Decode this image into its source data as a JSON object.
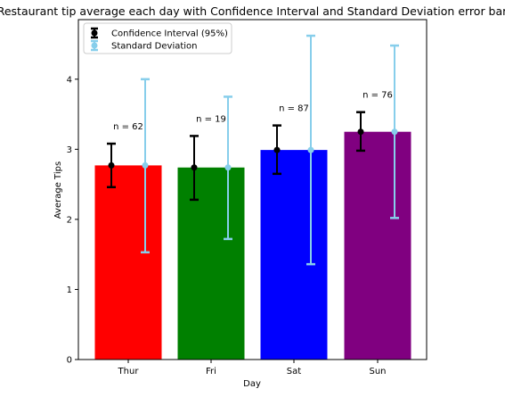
{
  "chart_data": {
    "type": "bar",
    "title": "Restaurant tip average each day with Confidence Interval and Standard Deviation error bar",
    "xlabel": "Day",
    "ylabel": "Average Tips",
    "categories": [
      "Thur",
      "Fri",
      "Sat",
      "Sun"
    ],
    "values": [
      2.77,
      2.74,
      2.99,
      3.25
    ],
    "bar_colors": [
      "#ff0000",
      "#008000",
      "#0000ff",
      "#800080"
    ],
    "counts": [
      "n = 62",
      "n = 19",
      "n = 87",
      "n = 76"
    ],
    "ci": [
      {
        "low": 2.46,
        "high": 3.08
      },
      {
        "low": 2.28,
        "high": 3.19
      },
      {
        "low": 2.65,
        "high": 3.34
      },
      {
        "low": 2.98,
        "high": 3.53
      }
    ],
    "std": [
      {
        "low": 1.53,
        "high": 4.0
      },
      {
        "low": 1.72,
        "high": 3.75
      },
      {
        "low": 1.36,
        "high": 4.62
      },
      {
        "low": 2.02,
        "high": 4.48
      }
    ],
    "ylim": [
      0,
      4.85
    ],
    "yticks": [
      0,
      1,
      2,
      3,
      4
    ],
    "legend": {
      "placement": "top-left",
      "entries": [
        {
          "label": "Confidence Interval (95%)",
          "color": "#000000"
        },
        {
          "label": "Standard Deviation",
          "color": "#87ceeb"
        }
      ]
    },
    "grid": false
  }
}
